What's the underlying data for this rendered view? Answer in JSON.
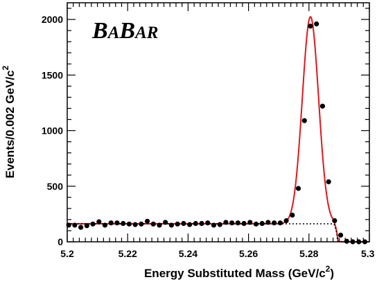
{
  "chart_data": {
    "type": "scatter",
    "logo": "BABAR",
    "xlabel_main": "Energy Substituted Mass (GeV/c",
    "xlabel_sup": "2",
    "xlabel_close": ")",
    "ylabel_main": "Events/0.002 GeV/c",
    "ylabel_sup": "2",
    "xlim": [
      5.2,
      5.3
    ],
    "ylim": [
      0,
      2150
    ],
    "x_tick_labels": [
      "5.2",
      "5.22",
      "5.24",
      "5.26",
      "5.28",
      "5.3"
    ],
    "x_ticks": [
      5.2,
      5.22,
      5.24,
      5.26,
      5.28,
      5.3
    ],
    "y_tick_labels": [
      "0",
      "500",
      "1000",
      "1500",
      "2000"
    ],
    "y_ticks": [
      0,
      500,
      1000,
      1500,
      2000
    ],
    "colors": {
      "fit": "#e0161b",
      "background": "#000000",
      "points": "#000000"
    },
    "series": [
      {
        "kind": "points",
        "x": [
          5.2005,
          5.2025,
          5.2045,
          5.2065,
          5.2085,
          5.2105,
          5.2125,
          5.2145,
          5.2165,
          5.2185,
          5.2205,
          5.2225,
          5.2245,
          5.2265,
          5.2285,
          5.2305,
          5.2325,
          5.2345,
          5.2365,
          5.2385,
          5.2405,
          5.2425,
          5.2445,
          5.2465,
          5.2485,
          5.2505,
          5.2525,
          5.2545,
          5.2565,
          5.2585,
          5.2605,
          5.2625,
          5.2645,
          5.2665,
          5.2685,
          5.2705,
          5.2725,
          5.2745,
          5.2765,
          5.2785,
          5.2805,
          5.2825,
          5.2845,
          5.2865,
          5.2885,
          5.2905,
          5.2925,
          5.2945,
          5.2965,
          5.2985
        ],
        "y": [
          150,
          150,
          130,
          145,
          160,
          180,
          150,
          170,
          170,
          165,
          160,
          155,
          160,
          185,
          160,
          150,
          175,
          150,
          160,
          165,
          155,
          165,
          165,
          170,
          150,
          155,
          175,
          170,
          170,
          165,
          175,
          160,
          165,
          175,
          170,
          170,
          190,
          240,
          480,
          1090,
          1940,
          1960,
          1220,
          540,
          190,
          60,
          5,
          0,
          0,
          0
        ]
      },
      {
        "kind": "fit",
        "mean": 5.2805,
        "sigma": 0.0027,
        "amplitude": 1862
      },
      {
        "kind": "background",
        "level": 162,
        "endpoint": 5.2895
      }
    ]
  }
}
